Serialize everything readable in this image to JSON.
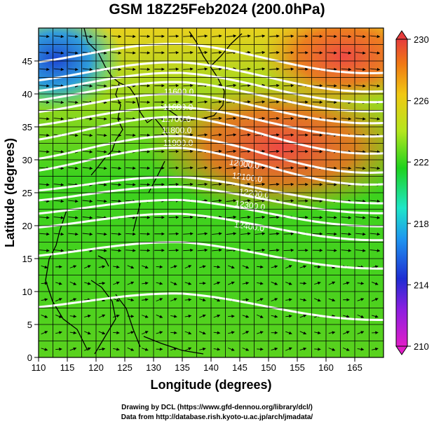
{
  "title": "GSM 18Z25Feb2024 (200.0hPa)",
  "xlabel": "Longitude (degrees)",
  "ylabel": "Latitude  (degrees)",
  "x_ticks": [
    "110",
    "115",
    "120",
    "125",
    "130",
    "135",
    "140",
    "145",
    "150",
    "155",
    "160",
    "165"
  ],
  "y_ticks": [
    "0",
    "5",
    "10",
    "15",
    "20",
    "25",
    "30",
    "35",
    "40",
    "45"
  ],
  "xlim": [
    110,
    170
  ],
  "ylim": [
    0,
    50
  ],
  "colorbar": {
    "range": [
      210,
      230
    ],
    "ticks": [
      "230",
      "226",
      "222",
      "218",
      "214",
      "210"
    ],
    "colors": [
      "#e01ec8",
      "#1e2dd2",
      "#1e96f0",
      "#1ee6c8",
      "#1ed21e",
      "#b4e61e",
      "#f0c814",
      "#f07814",
      "#e63c3c"
    ]
  },
  "contours": [
    {
      "label": "11600.0"
    },
    {
      "label": "11600.0"
    },
    {
      "label": "11700.0"
    },
    {
      "label": "11800.0"
    },
    {
      "label": "11900.0"
    },
    {
      "label": "12000.0"
    },
    {
      "label": "12100.0"
    },
    {
      "label": "12200.0"
    },
    {
      "label": "12300.0"
    },
    {
      "label": "12400.0"
    }
  ],
  "credits": {
    "line1": "Drawing by DCL (https://www.gfd-dennou.org/library/dcl/)",
    "line2": "Data from http://database.rish.kyoto-u.ac.jp/arch/jmadata/"
  }
}
